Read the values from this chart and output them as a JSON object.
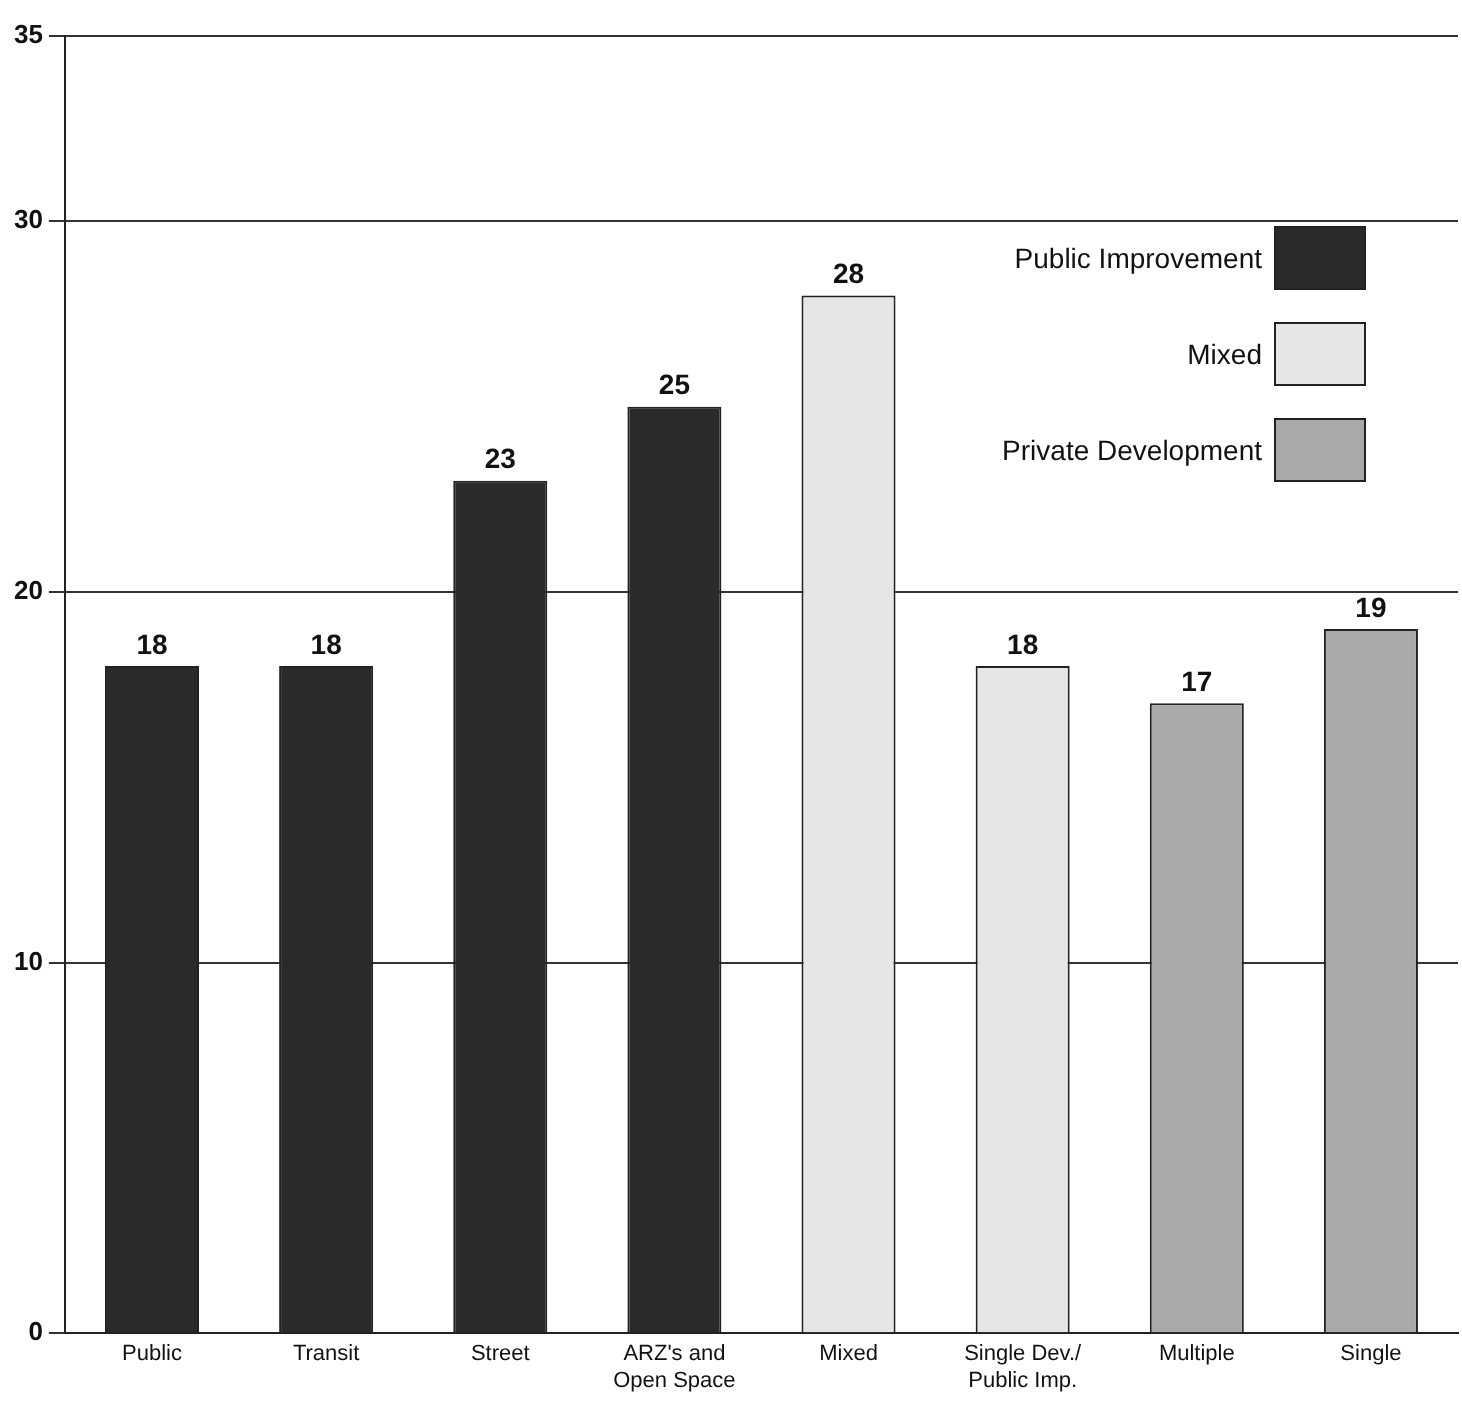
{
  "chart_data": {
    "type": "bar",
    "categories": [
      "Public",
      "Transit",
      "Street",
      "ARZ's and\nOpen Space",
      "Mixed",
      "Single Dev./\nPublic Imp.",
      "Multiple",
      "Single"
    ],
    "series": [
      {
        "name": "Public Improvement",
        "color": "#2a2a2a",
        "values": [
          18,
          18,
          23,
          25,
          null,
          null,
          null,
          null
        ]
      },
      {
        "name": "Mixed",
        "color": "#e6e6e6",
        "values": [
          null,
          null,
          null,
          null,
          28,
          18,
          null,
          null
        ]
      },
      {
        "name": "Private Development",
        "color": "#a9a9a9",
        "values": [
          null,
          null,
          null,
          null,
          null,
          null,
          17,
          19
        ]
      }
    ],
    "ylim": [
      0,
      35
    ],
    "yticks": [
      0,
      10,
      20,
      30,
      35
    ],
    "grid": "y",
    "legend": "top right",
    "data_labels": true
  }
}
